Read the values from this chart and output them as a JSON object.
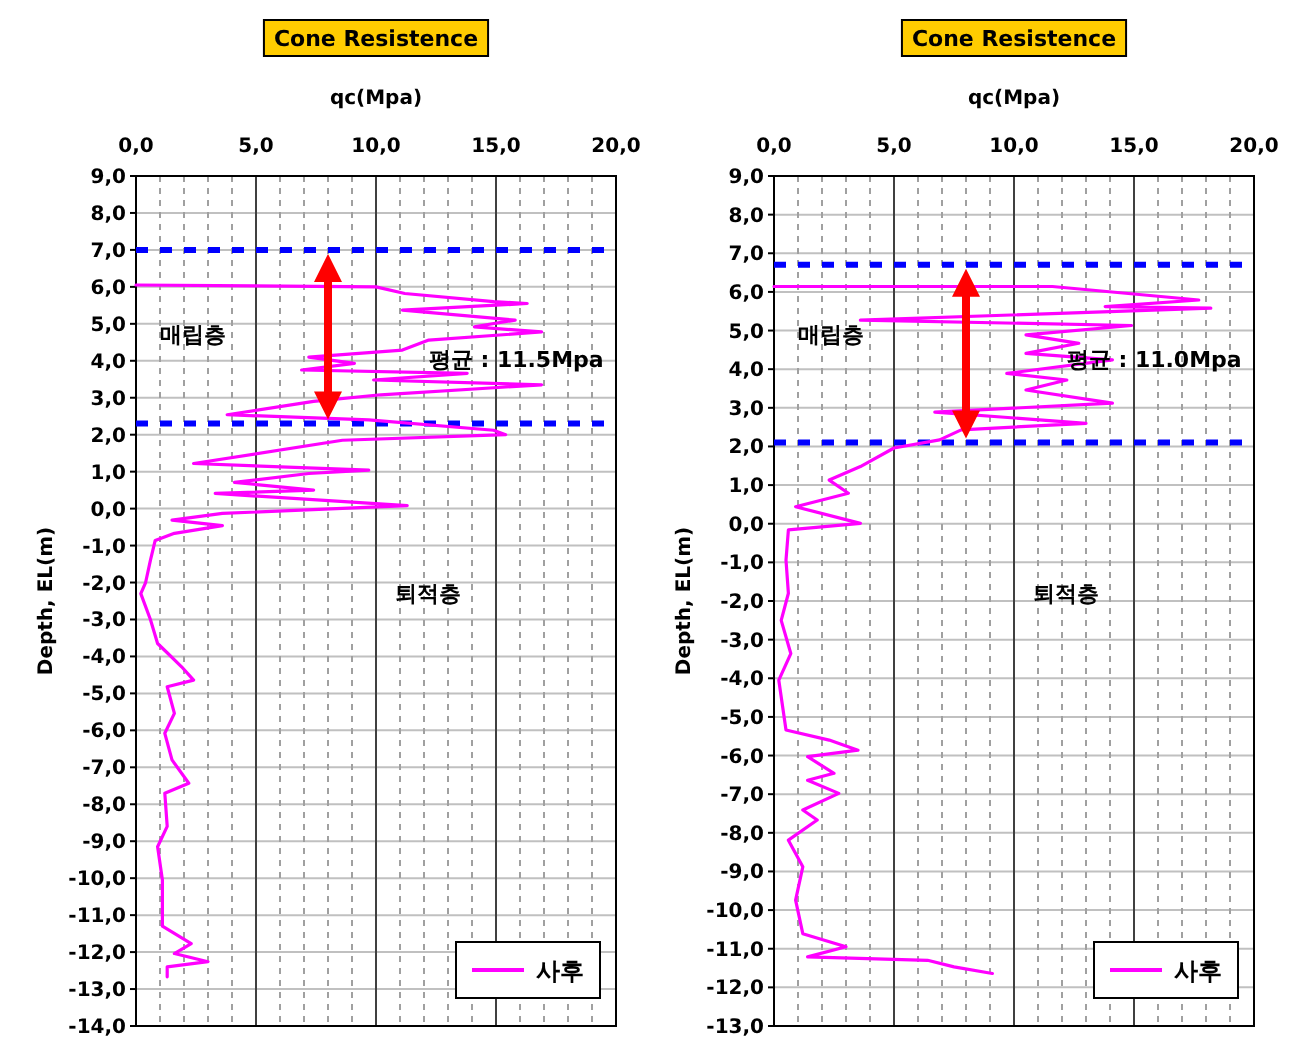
{
  "chart_data": [
    {
      "type": "line",
      "title": "Cone Resistence",
      "xlabel": "qc(Mpa)",
      "ylabel": "Depth, EL(m)",
      "legend": "bottom right",
      "grid": true,
      "xlim": [
        0,
        20
      ],
      "ylim": [
        -14,
        9
      ],
      "xticks": [
        {
          "value": 0,
          "label": "0,0"
        },
        {
          "value": 1,
          "label": null
        },
        {
          "value": 2,
          "label": null
        },
        {
          "value": 3,
          "label": null
        },
        {
          "value": 4,
          "label": null
        },
        {
          "value": 5,
          "label": "5,0"
        },
        {
          "value": 6,
          "label": null
        },
        {
          "value": 7,
          "label": null
        },
        {
          "value": 8,
          "label": null
        },
        {
          "value": 9,
          "label": null
        },
        {
          "value": 10,
          "label": "10,0"
        },
        {
          "value": 11,
          "label": null
        },
        {
          "value": 12,
          "label": null
        },
        {
          "value": 13,
          "label": null
        },
        {
          "value": 14,
          "label": null
        },
        {
          "value": 15,
          "label": "15,0"
        },
        {
          "value": 16,
          "label": null
        },
        {
          "value": 17,
          "label": null
        },
        {
          "value": 18,
          "label": null
        },
        {
          "value": 19,
          "label": null
        },
        {
          "value": 20,
          "label": "20,0"
        }
      ],
      "yticks": [
        {
          "value": 9,
          "label": "9,0"
        },
        {
          "value": 8,
          "label": "8,0"
        },
        {
          "value": 7,
          "label": "7,0"
        },
        {
          "value": 6,
          "label": "6,0"
        },
        {
          "value": 5,
          "label": "5,0"
        },
        {
          "value": 4,
          "label": "4,0"
        },
        {
          "value": 3,
          "label": "3,0"
        },
        {
          "value": 2,
          "label": "2,0"
        },
        {
          "value": 1,
          "label": "1,0"
        },
        {
          "value": 0,
          "label": "0,0"
        },
        {
          "value": -1,
          "label": "-1,0"
        },
        {
          "value": -2,
          "label": "-2,0"
        },
        {
          "value": -3,
          "label": "-3,0"
        },
        {
          "value": -4,
          "label": "-4,0"
        },
        {
          "value": -5,
          "label": "-5,0"
        },
        {
          "value": -6,
          "label": "-6,0"
        },
        {
          "value": -7,
          "label": "-7,0"
        },
        {
          "value": -8,
          "label": "-8,0"
        },
        {
          "value": -9,
          "label": "-9,0"
        },
        {
          "value": -10,
          "label": "-10,0"
        },
        {
          "value": -11,
          "label": "-11,0"
        },
        {
          "value": -12,
          "label": "-12,0"
        },
        {
          "value": -13,
          "label": "-13,0"
        },
        {
          "value": -14,
          "label": "-14,0"
        }
      ],
      "ref_lines": [
        {
          "axis": "y",
          "value": 7.0,
          "label": null,
          "color": "#0000ff",
          "line_style": "dashed"
        },
        {
          "axis": "y",
          "value": 2.3,
          "label": null,
          "color": "#0000ff",
          "line_style": "dashed"
        }
      ],
      "annotations": [
        "매립층",
        "평균 : 11.5Mpa",
        "퇴적층"
      ],
      "series": [
        {
          "name": "사후",
          "color": "#ff00ff",
          "x": [
            0,
            10,
            11.2,
            14.9,
            16.3,
            11.1,
            15.8,
            14.1,
            16.9,
            12.2,
            11.1,
            7.2,
            9.1,
            6.9,
            13.8,
            9.9,
            16.9,
            10.2,
            7.4,
            3.8,
            9.7,
            14.9,
            15.4,
            8.6,
            2.4,
            9.7,
            7.2,
            4.1,
            7.4,
            3.3,
            11.3,
            3.6,
            1.5,
            3.6,
            1.6,
            0.8,
            0.6,
            0.4,
            0.2,
            0.6,
            0.9,
            1.3,
            1.9,
            2.4,
            1.3,
            1.6,
            1.2,
            1.5,
            2.2,
            1.2,
            1.3,
            0.9,
            1.1,
            1.1,
            2.3,
            1.6,
            3.0,
            1.3,
            1.3
          ],
          "values": [
            6.05,
            6.0,
            5.82,
            5.6,
            5.55,
            5.37,
            5.1,
            4.92,
            4.78,
            4.56,
            4.29,
            4.1,
            3.93,
            3.75,
            3.66,
            3.48,
            3.35,
            3.08,
            2.9,
            2.54,
            2.4,
            2.12,
            2.0,
            1.85,
            1.22,
            1.04,
            0.95,
            0.71,
            0.5,
            0.41,
            0.08,
            -0.13,
            -0.31,
            -0.46,
            -0.67,
            -0.86,
            -1.4,
            -2.0,
            -2.3,
            -3.0,
            -3.65,
            -3.9,
            -4.28,
            -4.64,
            -4.82,
            -5.54,
            -6.08,
            -6.8,
            -7.43,
            -7.7,
            -8.6,
            -9.15,
            -10.05,
            -11.3,
            -11.77,
            -12.04,
            -12.26,
            -12.4,
            -12.67
          ]
        }
      ]
    },
    {
      "type": "line",
      "title": "Cone Resistence",
      "xlabel": "qc(Mpa)",
      "ylabel": "Depth, EL(m)",
      "legend": "bottom right",
      "grid": true,
      "xlim": [
        0,
        20
      ],
      "ylim": [
        -13,
        9
      ],
      "xticks": [
        {
          "value": 0,
          "label": "0,0"
        },
        {
          "value": 1,
          "label": null
        },
        {
          "value": 2,
          "label": null
        },
        {
          "value": 3,
          "label": null
        },
        {
          "value": 4,
          "label": null
        },
        {
          "value": 5,
          "label": "5,0"
        },
        {
          "value": 6,
          "label": null
        },
        {
          "value": 7,
          "label": null
        },
        {
          "value": 8,
          "label": null
        },
        {
          "value": 9,
          "label": null
        },
        {
          "value": 10,
          "label": "10,0"
        },
        {
          "value": 11,
          "label": null
        },
        {
          "value": 12,
          "label": null
        },
        {
          "value": 13,
          "label": null
        },
        {
          "value": 14,
          "label": null
        },
        {
          "value": 15,
          "label": "15,0"
        },
        {
          "value": 16,
          "label": null
        },
        {
          "value": 17,
          "label": null
        },
        {
          "value": 18,
          "label": null
        },
        {
          "value": 19,
          "label": null
        },
        {
          "value": 20,
          "label": "20,0"
        }
      ],
      "yticks": [
        {
          "value": 9,
          "label": "9,0"
        },
        {
          "value": 8,
          "label": "8,0"
        },
        {
          "value": 7,
          "label": "7,0"
        },
        {
          "value": 6,
          "label": "6,0"
        },
        {
          "value": 5,
          "label": "5,0"
        },
        {
          "value": 4,
          "label": "4,0"
        },
        {
          "value": 3,
          "label": "3,0"
        },
        {
          "value": 2,
          "label": "2,0"
        },
        {
          "value": 1,
          "label": "1,0"
        },
        {
          "value": 0,
          "label": "0,0"
        },
        {
          "value": -1,
          "label": "-1,0"
        },
        {
          "value": -2,
          "label": "-2,0"
        },
        {
          "value": -3,
          "label": "-3,0"
        },
        {
          "value": -4,
          "label": "-4,0"
        },
        {
          "value": -5,
          "label": "-5,0"
        },
        {
          "value": -6,
          "label": "-6,0"
        },
        {
          "value": -7,
          "label": "-7,0"
        },
        {
          "value": -8,
          "label": "-8,0"
        },
        {
          "value": -9,
          "label": "-9,0"
        },
        {
          "value": -10,
          "label": "-10,0"
        },
        {
          "value": -11,
          "label": "-11,0"
        },
        {
          "value": -12,
          "label": "-12,0"
        },
        {
          "value": -13,
          "label": "-13,0"
        }
      ],
      "ref_lines": [
        {
          "axis": "y",
          "value": 6.7,
          "label": null,
          "color": "#0000ff",
          "line_style": "dashed"
        },
        {
          "axis": "y",
          "value": 2.1,
          "label": null,
          "color": "#0000ff",
          "line_style": "dashed"
        }
      ],
      "annotations": [
        "매립층",
        "평균 : 11.0Mpa",
        "퇴적층"
      ],
      "series": [
        {
          "name": "사후",
          "color": "#ff00ff",
          "x": [
            0,
            11.6,
            17.7,
            13.8,
            18.2,
            3.6,
            14.9,
            10.5,
            12.7,
            10.5,
            14.1,
            9.7,
            12.2,
            10.5,
            14.1,
            6.7,
            13.0,
            7.8,
            6.9,
            5.0,
            3.6,
            2.3,
            3.1,
            0.9,
            3.6,
            0.6,
            0.5,
            0.6,
            0.3,
            0.7,
            0.2,
            0.5,
            2.3,
            3.5,
            1.4,
            2.5,
            1.4,
            2.7,
            1.2,
            1.8,
            0.6,
            1.2,
            0.9,
            1.2,
            3.0,
            1.4,
            6.4,
            7.5,
            9.1
          ],
          "values": [
            6.14,
            6.14,
            5.79,
            5.62,
            5.58,
            5.27,
            5.13,
            4.89,
            4.67,
            4.41,
            4.24,
            3.89,
            3.72,
            3.46,
            3.12,
            2.89,
            2.6,
            2.43,
            2.17,
            1.96,
            1.48,
            1.13,
            0.79,
            0.44,
            0.01,
            -0.16,
            -0.94,
            -1.8,
            -2.5,
            -3.36,
            -4.05,
            -5.34,
            -5.6,
            -5.86,
            -6.03,
            -6.46,
            -6.64,
            -6.98,
            -7.41,
            -7.67,
            -8.19,
            -8.88,
            -9.74,
            -10.61,
            -10.95,
            -11.21,
            -11.3,
            -11.47,
            -11.64
          ]
        }
      ]
    }
  ]
}
